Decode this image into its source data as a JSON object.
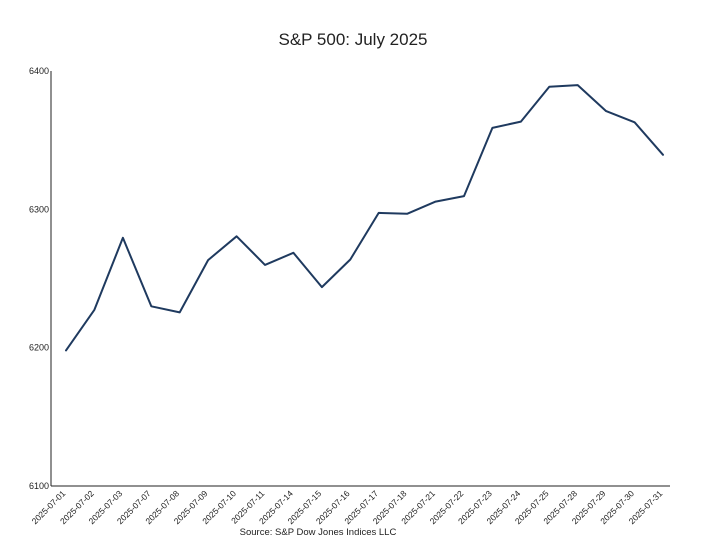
{
  "chart_data": {
    "type": "line",
    "title": "S&P 500: July 2025",
    "source": "Source: S&P Dow Jones Indices LLC",
    "xlabel": "",
    "ylabel": "",
    "ylim": [
      6100,
      6400
    ],
    "yticks": [
      6100,
      6200,
      6300,
      6400
    ],
    "grid": false,
    "line_color": "#1f3a5f",
    "categories": [
      "2025-07-01",
      "2025-07-02",
      "2025-07-03",
      "2025-07-07",
      "2025-07-08",
      "2025-07-09",
      "2025-07-10",
      "2025-07-11",
      "2025-07-14",
      "2025-07-15",
      "2025-07-16",
      "2025-07-17",
      "2025-07-18",
      "2025-07-21",
      "2025-07-22",
      "2025-07-23",
      "2025-07-24",
      "2025-07-25",
      "2025-07-28",
      "2025-07-29",
      "2025-07-30",
      "2025-07-31"
    ],
    "values": [
      6198.0,
      6227.4,
      6279.4,
      6229.9,
      6225.5,
      6263.3,
      6280.5,
      6259.8,
      6268.6,
      6243.8,
      6263.7,
      6297.4,
      6296.8,
      6305.6,
      6309.6,
      6358.9,
      6363.4,
      6388.6,
      6389.8,
      6371.0,
      6362.9,
      6339.4
    ]
  }
}
